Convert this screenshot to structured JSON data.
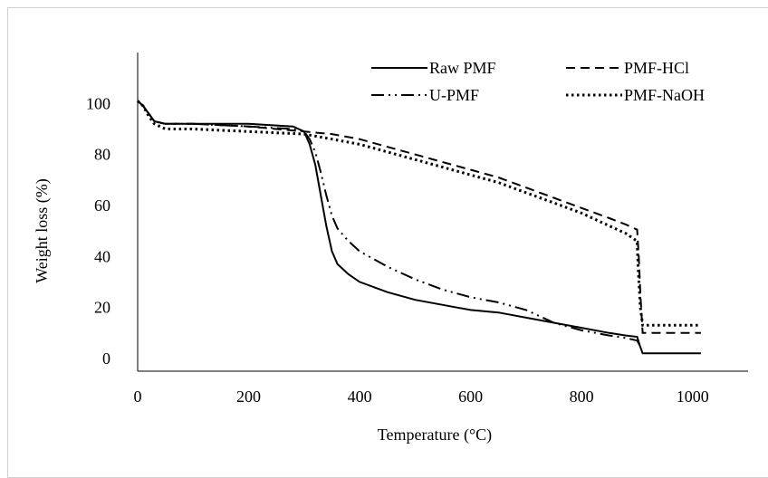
{
  "chart_data": {
    "type": "line",
    "title": "",
    "xlabel": "Temperature  (°C)",
    "ylabel": "Weight  loss  (%)",
    "xlim": [
      0,
      1100
    ],
    "ylim": [
      -5,
      120
    ],
    "x_ticks": [
      0,
      200,
      400,
      600,
      800,
      1000
    ],
    "y_ticks": [
      0,
      20,
      40,
      60,
      80,
      100
    ],
    "grid": false,
    "legend_position": "top-right",
    "series": [
      {
        "name": "Raw PMF",
        "style": "solid",
        "color": "#000000",
        "points": [
          [
            0,
            101
          ],
          [
            10,
            99
          ],
          [
            20,
            96
          ],
          [
            30,
            93
          ],
          [
            50,
            92
          ],
          [
            100,
            92
          ],
          [
            200,
            92
          ],
          [
            280,
            91
          ],
          [
            300,
            89
          ],
          [
            310,
            84
          ],
          [
            320,
            76
          ],
          [
            330,
            64
          ],
          [
            340,
            52
          ],
          [
            350,
            42
          ],
          [
            360,
            37
          ],
          [
            380,
            33
          ],
          [
            400,
            30
          ],
          [
            450,
            26
          ],
          [
            500,
            23
          ],
          [
            550,
            21
          ],
          [
            600,
            19
          ],
          [
            650,
            18
          ],
          [
            700,
            16
          ],
          [
            750,
            14
          ],
          [
            800,
            12
          ],
          [
            850,
            10
          ],
          [
            880,
            9
          ],
          [
            900,
            8.5
          ],
          [
            905,
            5
          ],
          [
            910,
            2
          ],
          [
            950,
            2
          ],
          [
            1015,
            2
          ]
        ]
      },
      {
        "name": "PMF-HCl",
        "style": "dashed",
        "color": "#000000",
        "points": [
          [
            0,
            101
          ],
          [
            10,
            99
          ],
          [
            20,
            96
          ],
          [
            30,
            93
          ],
          [
            50,
            92
          ],
          [
            100,
            92
          ],
          [
            200,
            91
          ],
          [
            300,
            89
          ],
          [
            350,
            88
          ],
          [
            400,
            86
          ],
          [
            450,
            83
          ],
          [
            500,
            80
          ],
          [
            550,
            77
          ],
          [
            600,
            74
          ],
          [
            650,
            71
          ],
          [
            700,
            67
          ],
          [
            750,
            63
          ],
          [
            800,
            59
          ],
          [
            850,
            55
          ],
          [
            880,
            52.5
          ],
          [
            900,
            50.5
          ],
          [
            903,
            40
          ],
          [
            906,
            25
          ],
          [
            910,
            10
          ],
          [
            950,
            10
          ],
          [
            1015,
            10
          ]
        ]
      },
      {
        "name": "U-PMF",
        "style": "dashdotdot",
        "color": "#000000",
        "points": [
          [
            0,
            101
          ],
          [
            10,
            99
          ],
          [
            20,
            96
          ],
          [
            30,
            93
          ],
          [
            50,
            92
          ],
          [
            100,
            92
          ],
          [
            200,
            91
          ],
          [
            280,
            90
          ],
          [
            300,
            89
          ],
          [
            310,
            86
          ],
          [
            320,
            81
          ],
          [
            330,
            73
          ],
          [
            340,
            64
          ],
          [
            350,
            56
          ],
          [
            360,
            51
          ],
          [
            380,
            46
          ],
          [
            400,
            42
          ],
          [
            450,
            36
          ],
          [
            500,
            31
          ],
          [
            550,
            27
          ],
          [
            600,
            24
          ],
          [
            650,
            22
          ],
          [
            700,
            19
          ],
          [
            750,
            14
          ],
          [
            800,
            11
          ],
          [
            850,
            9
          ],
          [
            880,
            8
          ],
          [
            900,
            7
          ],
          [
            905,
            5
          ],
          [
            910,
            4
          ]
        ]
      },
      {
        "name": "PMF-NaOH",
        "style": "dotted",
        "color": "#000000",
        "points": [
          [
            0,
            101
          ],
          [
            10,
            99
          ],
          [
            20,
            95
          ],
          [
            30,
            92
          ],
          [
            50,
            90
          ],
          [
            100,
            90
          ],
          [
            200,
            89
          ],
          [
            300,
            88
          ],
          [
            350,
            86
          ],
          [
            400,
            84
          ],
          [
            450,
            81
          ],
          [
            500,
            78
          ],
          [
            550,
            75
          ],
          [
            600,
            72
          ],
          [
            650,
            69
          ],
          [
            700,
            65
          ],
          [
            750,
            61
          ],
          [
            800,
            57
          ],
          [
            850,
            52
          ],
          [
            880,
            49
          ],
          [
            900,
            46
          ],
          [
            902,
            35
          ],
          [
            906,
            20
          ],
          [
            910,
            13
          ],
          [
            950,
            13
          ],
          [
            1015,
            13
          ]
        ]
      }
    ]
  }
}
